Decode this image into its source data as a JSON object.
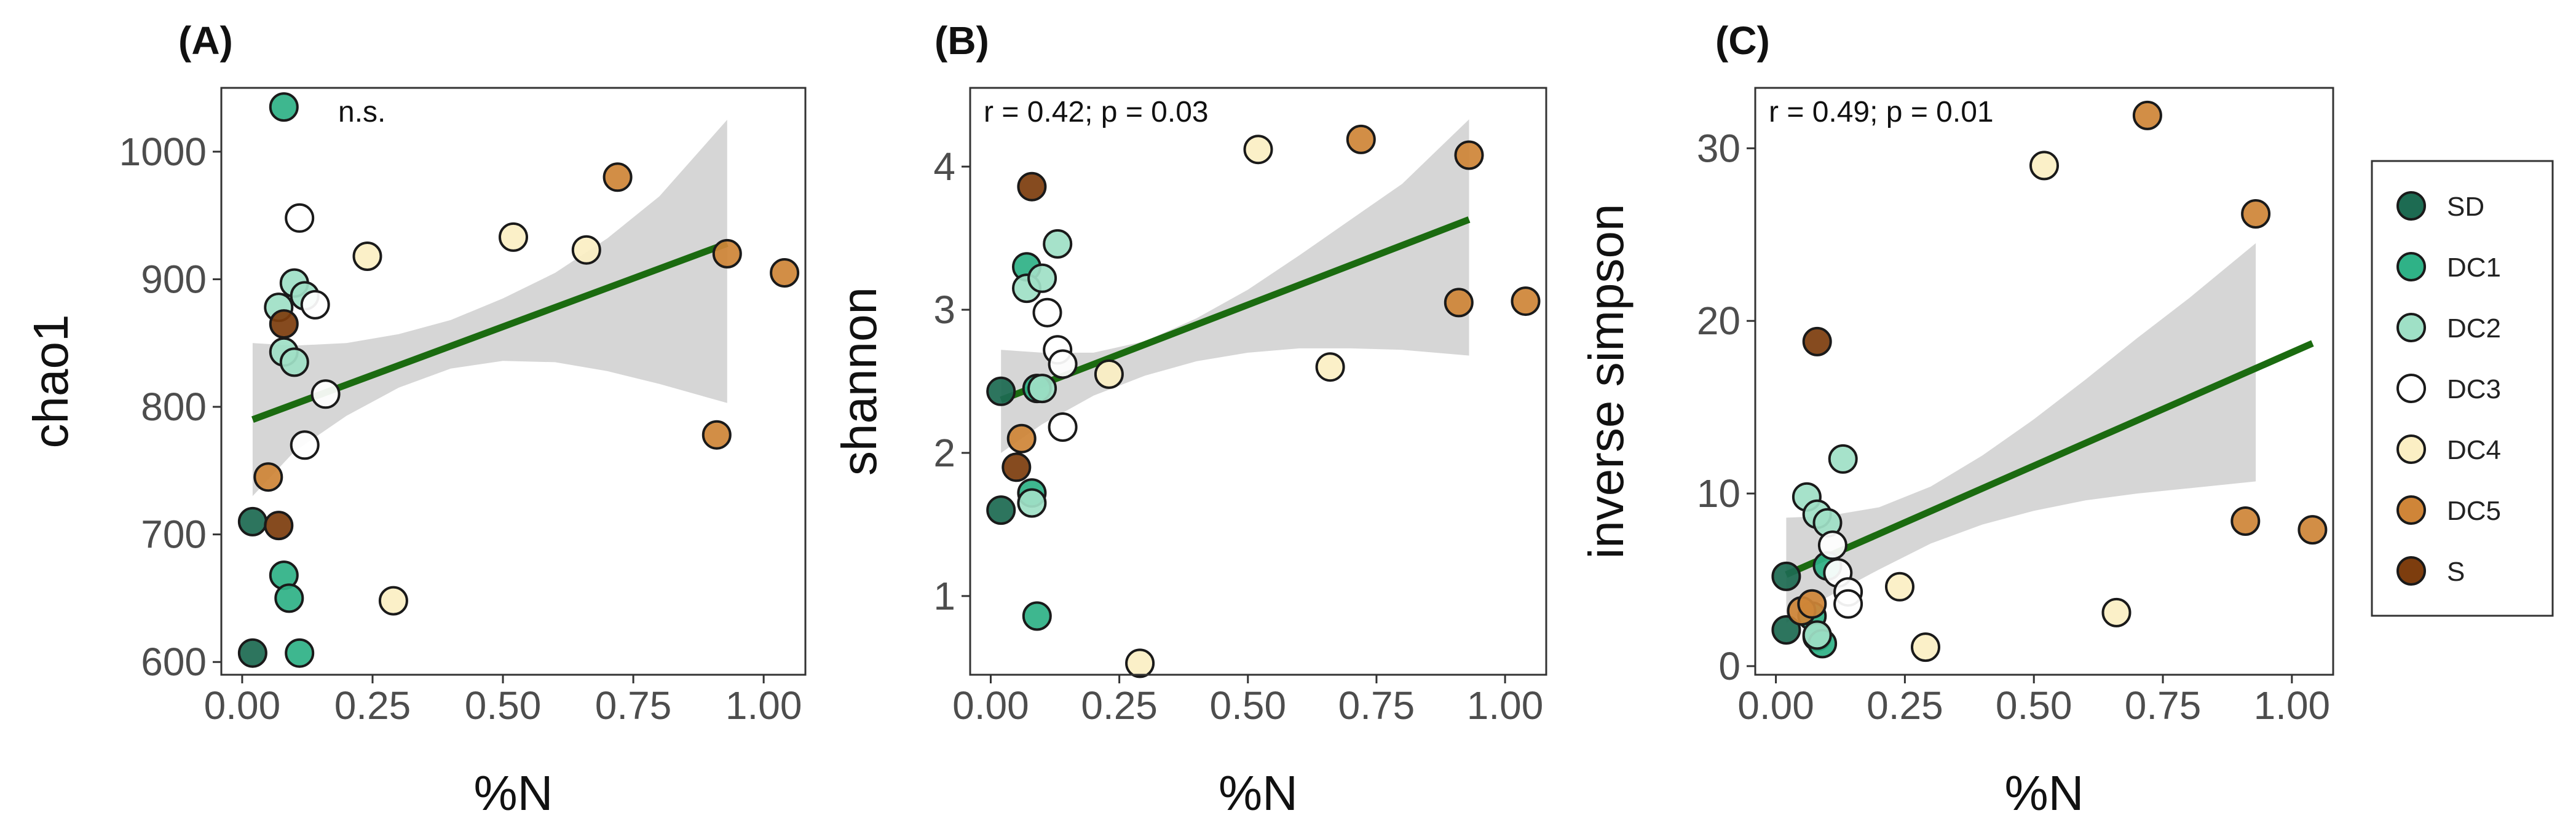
{
  "palette": {
    "SD": "#1d6b52",
    "DC1": "#2fb287",
    "DC2": "#9fe0c6",
    "DC3": "#ffffff",
    "DC4": "#fbefc4",
    "DC5": "#cf8538",
    "S": "#7d3d0e",
    "fit_line": "#1b6b10",
    "ribbon": "#cfcfcf",
    "axis_text": "#4d4d4d"
  },
  "legend": {
    "entries": [
      "SD",
      "DC1",
      "DC2",
      "DC3",
      "DC4",
      "DC5",
      "S"
    ]
  },
  "chart_data": [
    {
      "type": "scatter",
      "panel_label": "(A)",
      "annotation": "n.s.",
      "xlabel": "%N",
      "ylabel": "chao1",
      "xlim": [
        -0.04,
        1.08
      ],
      "ylim": [
        590,
        1050
      ],
      "x_ticks": [
        0.0,
        0.25,
        0.5,
        0.75,
        1.0
      ],
      "x_tick_labels": [
        "0.00",
        "0.25",
        "0.50",
        "0.75",
        "1.00"
      ],
      "y_ticks": [
        600,
        700,
        800,
        900,
        1000
      ],
      "y_tick_labels": [
        "600",
        "700",
        "800",
        "900",
        "1000"
      ],
      "fit": {
        "x": [
          0.02,
          0.93
        ],
        "y": [
          790,
          928
        ]
      },
      "ribbon": {
        "x": [
          0.02,
          0.1,
          0.2,
          0.3,
          0.4,
          0.5,
          0.6,
          0.7,
          0.8,
          0.93
        ],
        "lower": [
          730,
          765,
          793,
          815,
          830,
          836,
          835,
          828,
          818,
          803
        ],
        "upper": [
          850,
          848,
          850,
          857,
          868,
          885,
          905,
          932,
          965,
          1025
        ]
      },
      "points": [
        {
          "x": 0.08,
          "y": 1035,
          "g": "DC1"
        },
        {
          "x": 0.02,
          "y": 710,
          "g": "SD"
        },
        {
          "x": 0.02,
          "y": 607,
          "g": "SD"
        },
        {
          "x": 0.08,
          "y": 668,
          "g": "DC1"
        },
        {
          "x": 0.09,
          "y": 650,
          "g": "DC1"
        },
        {
          "x": 0.11,
          "y": 607,
          "g": "DC1"
        },
        {
          "x": 0.07,
          "y": 878,
          "g": "DC2"
        },
        {
          "x": 0.1,
          "y": 897,
          "g": "DC2"
        },
        {
          "x": 0.12,
          "y": 887,
          "g": "DC2"
        },
        {
          "x": 0.08,
          "y": 843,
          "g": "DC2"
        },
        {
          "x": 0.1,
          "y": 835,
          "g": "DC2"
        },
        {
          "x": 0.11,
          "y": 948,
          "g": "DC3"
        },
        {
          "x": 0.14,
          "y": 880,
          "g": "DC3"
        },
        {
          "x": 0.16,
          "y": 810,
          "g": "DC3"
        },
        {
          "x": 0.12,
          "y": 770,
          "g": "DC3"
        },
        {
          "x": 0.24,
          "y": 918,
          "g": "DC4"
        },
        {
          "x": 0.29,
          "y": 648,
          "g": "DC4"
        },
        {
          "x": 0.52,
          "y": 933,
          "g": "DC4"
        },
        {
          "x": 0.66,
          "y": 923,
          "g": "DC4"
        },
        {
          "x": 0.72,
          "y": 980,
          "g": "DC5"
        },
        {
          "x": 0.93,
          "y": 920,
          "g": "DC5"
        },
        {
          "x": 1.04,
          "y": 905,
          "g": "DC5"
        },
        {
          "x": 0.91,
          "y": 778,
          "g": "DC5"
        },
        {
          "x": 0.05,
          "y": 745,
          "g": "DC5"
        },
        {
          "x": 0.07,
          "y": 707,
          "g": "S"
        },
        {
          "x": 0.08,
          "y": 865,
          "g": "S"
        }
      ]
    },
    {
      "type": "scatter",
      "panel_label": "(B)",
      "annotation": "r = 0.42; p = 0.03",
      "xlabel": "%N",
      "ylabel": "shannon",
      "xlim": [
        -0.04,
        1.08
      ],
      "ylim": [
        0.45,
        4.55
      ],
      "x_ticks": [
        0.0,
        0.25,
        0.5,
        0.75,
        1.0
      ],
      "x_tick_labels": [
        "0.00",
        "0.25",
        "0.50",
        "0.75",
        "1.00"
      ],
      "y_ticks": [
        1,
        2,
        3,
        4
      ],
      "y_tick_labels": [
        "1",
        "2",
        "3",
        "4"
      ],
      "fit": {
        "x": [
          0.02,
          0.93
        ],
        "y": [
          2.37,
          3.63
        ]
      },
      "ribbon": {
        "x": [
          0.02,
          0.1,
          0.2,
          0.3,
          0.4,
          0.5,
          0.6,
          0.7,
          0.8,
          0.93
        ],
        "lower": [
          2.0,
          2.2,
          2.4,
          2.54,
          2.64,
          2.7,
          2.73,
          2.73,
          2.72,
          2.68
        ],
        "upper": [
          2.72,
          2.7,
          2.7,
          2.78,
          2.94,
          3.14,
          3.38,
          3.63,
          3.88,
          4.33
        ]
      },
      "points": [
        {
          "x": 0.02,
          "y": 2.43,
          "g": "SD"
        },
        {
          "x": 0.02,
          "y": 1.6,
          "g": "SD"
        },
        {
          "x": 0.07,
          "y": 3.3,
          "g": "DC1"
        },
        {
          "x": 0.08,
          "y": 1.72,
          "g": "DC1"
        },
        {
          "x": 0.09,
          "y": 0.86,
          "g": "DC1"
        },
        {
          "x": 0.09,
          "y": 2.45,
          "g": "DC1"
        },
        {
          "x": 0.07,
          "y": 3.15,
          "g": "DC2"
        },
        {
          "x": 0.1,
          "y": 3.22,
          "g": "DC2"
        },
        {
          "x": 0.13,
          "y": 3.46,
          "g": "DC2"
        },
        {
          "x": 0.08,
          "y": 1.65,
          "g": "DC2"
        },
        {
          "x": 0.1,
          "y": 2.45,
          "g": "DC2"
        },
        {
          "x": 0.11,
          "y": 2.98,
          "g": "DC3"
        },
        {
          "x": 0.13,
          "y": 2.72,
          "g": "DC3"
        },
        {
          "x": 0.14,
          "y": 2.62,
          "g": "DC3"
        },
        {
          "x": 0.14,
          "y": 2.18,
          "g": "DC3"
        },
        {
          "x": 0.23,
          "y": 2.55,
          "g": "DC4"
        },
        {
          "x": 0.29,
          "y": 0.53,
          "g": "DC4"
        },
        {
          "x": 0.52,
          "y": 4.12,
          "g": "DC4"
        },
        {
          "x": 0.66,
          "y": 2.6,
          "g": "DC4"
        },
        {
          "x": 0.72,
          "y": 4.19,
          "g": "DC5"
        },
        {
          "x": 0.93,
          "y": 4.08,
          "g": "DC5"
        },
        {
          "x": 1.04,
          "y": 3.06,
          "g": "DC5"
        },
        {
          "x": 0.91,
          "y": 3.05,
          "g": "DC5"
        },
        {
          "x": 0.06,
          "y": 2.1,
          "g": "DC5"
        },
        {
          "x": 0.05,
          "y": 1.9,
          "g": "S"
        },
        {
          "x": 0.08,
          "y": 3.86,
          "g": "S"
        }
      ]
    },
    {
      "type": "scatter",
      "panel_label": "(C)",
      "annotation": "r = 0.49; p = 0.01",
      "xlabel": "%N",
      "ylabel": "inverse simpson",
      "xlim": [
        -0.04,
        1.08
      ],
      "ylim": [
        -0.5,
        33.5
      ],
      "x_ticks": [
        0.0,
        0.25,
        0.5,
        0.75,
        1.0
      ],
      "x_tick_labels": [
        "0.00",
        "0.25",
        "0.50",
        "0.75",
        "1.00"
      ],
      "y_ticks": [
        0,
        10,
        20,
        30
      ],
      "y_tick_labels": [
        "0",
        "10",
        "20",
        "30"
      ],
      "fit": {
        "x": [
          0.02,
          1.04
        ],
        "y": [
          5.3,
          18.7
        ]
      },
      "ribbon": {
        "x": [
          0.02,
          0.1,
          0.2,
          0.3,
          0.4,
          0.5,
          0.6,
          0.7,
          0.8,
          0.93
        ],
        "lower": [
          2.5,
          4.0,
          5.6,
          7.1,
          8.2,
          9.0,
          9.6,
          10.0,
          10.3,
          10.7
        ],
        "upper": [
          8.6,
          8.7,
          9.2,
          10.4,
          12.2,
          14.3,
          16.6,
          19.0,
          21.3,
          24.5
        ]
      },
      "points": [
        {
          "x": 0.02,
          "y": 5.2,
          "g": "SD"
        },
        {
          "x": 0.02,
          "y": 2.1,
          "g": "SD"
        },
        {
          "x": 0.07,
          "y": 2.9,
          "g": "DC1"
        },
        {
          "x": 0.08,
          "y": 1.7,
          "g": "DC1"
        },
        {
          "x": 0.09,
          "y": 1.3,
          "g": "DC1"
        },
        {
          "x": 0.1,
          "y": 5.8,
          "g": "DC1"
        },
        {
          "x": 0.06,
          "y": 9.8,
          "g": "DC2"
        },
        {
          "x": 0.08,
          "y": 8.8,
          "g": "DC2"
        },
        {
          "x": 0.1,
          "y": 8.3,
          "g": "DC2"
        },
        {
          "x": 0.13,
          "y": 12.0,
          "g": "DC2"
        },
        {
          "x": 0.08,
          "y": 1.8,
          "g": "DC2"
        },
        {
          "x": 0.11,
          "y": 7.0,
          "g": "DC3"
        },
        {
          "x": 0.12,
          "y": 5.4,
          "g": "DC3"
        },
        {
          "x": 0.14,
          "y": 4.3,
          "g": "DC3"
        },
        {
          "x": 0.14,
          "y": 3.6,
          "g": "DC3"
        },
        {
          "x": 0.24,
          "y": 4.6,
          "g": "DC4"
        },
        {
          "x": 0.29,
          "y": 1.1,
          "g": "DC4"
        },
        {
          "x": 0.52,
          "y": 29.0,
          "g": "DC4"
        },
        {
          "x": 0.66,
          "y": 3.1,
          "g": "DC4"
        },
        {
          "x": 0.72,
          "y": 31.9,
          "g": "DC5"
        },
        {
          "x": 0.93,
          "y": 26.2,
          "g": "DC5"
        },
        {
          "x": 0.91,
          "y": 8.4,
          "g": "DC5"
        },
        {
          "x": 1.04,
          "y": 7.9,
          "g": "DC5"
        },
        {
          "x": 0.05,
          "y": 3.2,
          "g": "DC5"
        },
        {
          "x": 0.07,
          "y": 3.6,
          "g": "DC5"
        },
        {
          "x": 0.08,
          "y": 18.8,
          "g": "S"
        }
      ]
    }
  ]
}
